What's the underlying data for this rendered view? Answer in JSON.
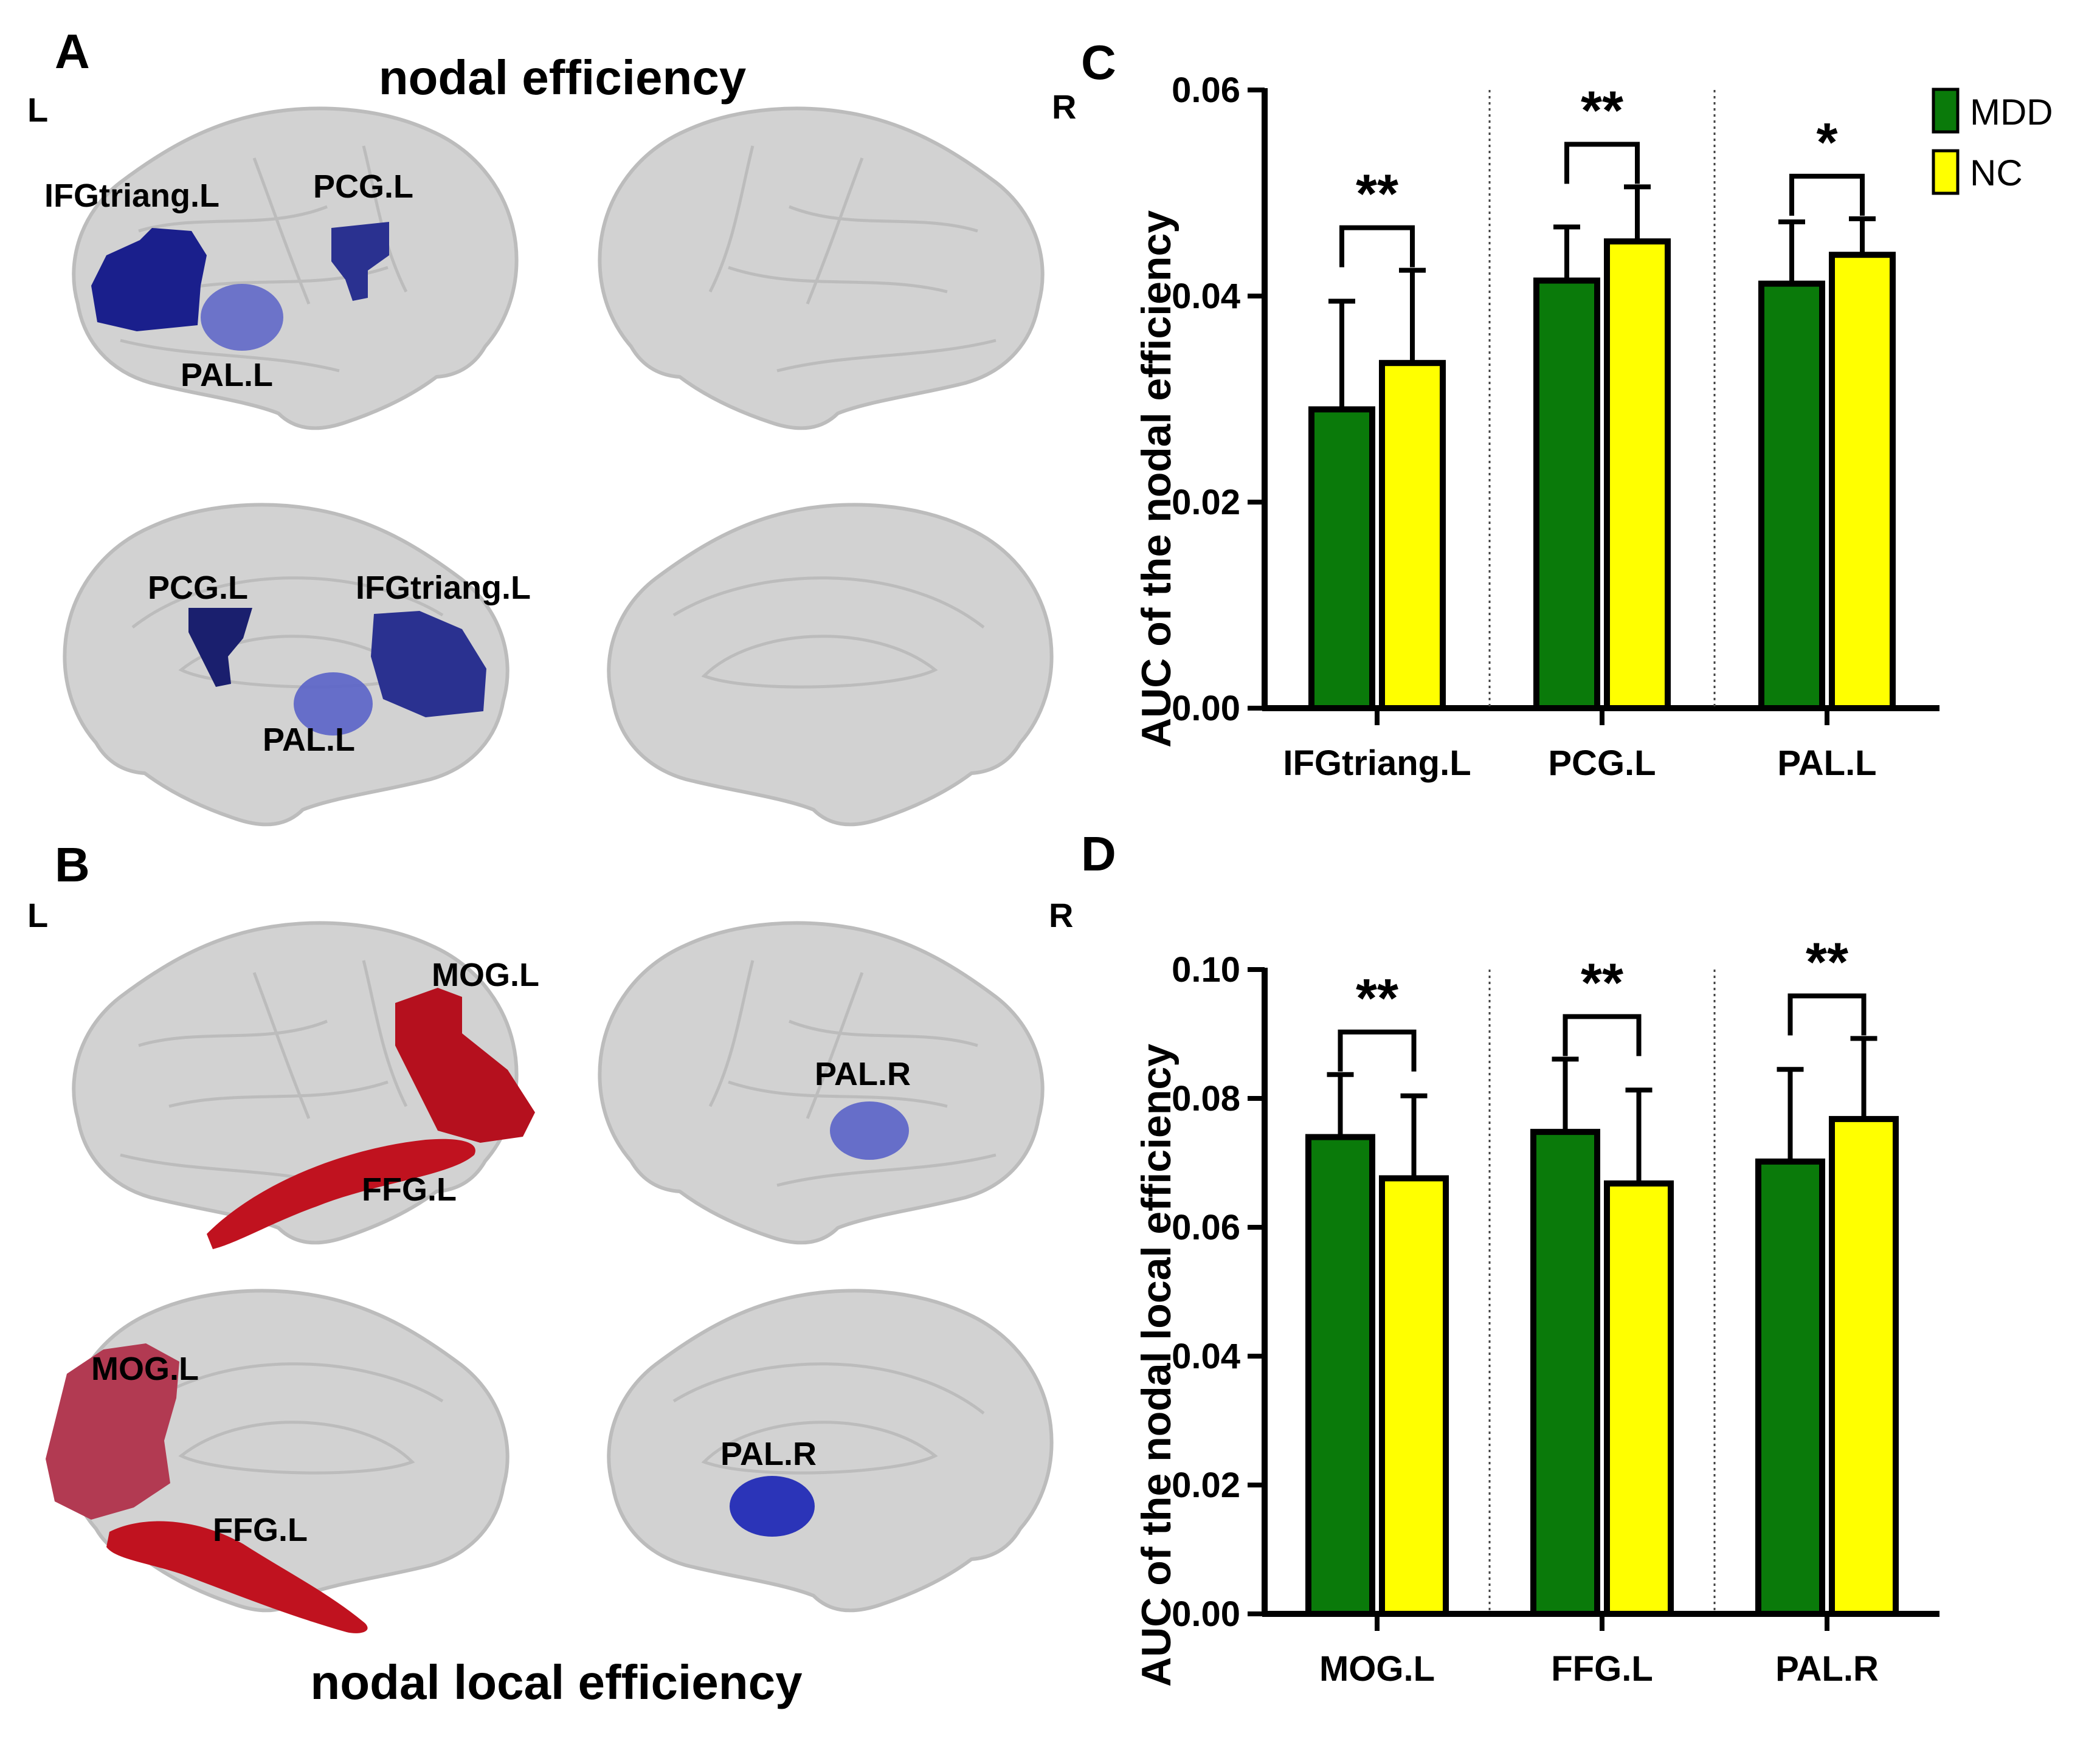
{
  "colors": {
    "mdd": "#0a7a0a",
    "nc": "#ffff00",
    "bar_stroke": "#000000",
    "brain_fill": "#d2d2d2",
    "brain_stroke": "#bcbcbc",
    "blue_region": "#1a1f8c",
    "light_blue_region": "#5a63c8",
    "red_region": "#b5101e"
  },
  "panel_a": {
    "letter": "A",
    "title": "nodal efficiency",
    "left_marker": "L",
    "right_marker": "R",
    "labels": {
      "ifg_lateral": "IFGtriang.L",
      "pcg_lateral": "PCG.L",
      "pal_lateral": "PAL.L",
      "pcg_medial": "PCG.L",
      "ifg_medial": "IFGtriang.L",
      "pal_medial": "PAL.L"
    }
  },
  "panel_b": {
    "letter": "B",
    "title": "nodal local efficiency",
    "left_marker": "L",
    "right_marker": "R",
    "labels": {
      "mog_lateral": "MOG.L",
      "ffg_lateral": "FFG.L",
      "pal_r_lateral": "PAL.R",
      "mog_medial": "MOG.L",
      "ffg_medial": "FFG.L",
      "pal_r_medial": "PAL.R"
    }
  },
  "chart_data": [
    {
      "panel": "C",
      "type": "bar",
      "title": "",
      "ylabel": "AUC of the nodal efficiency",
      "xlabel": "",
      "ylim": [
        0,
        0.06
      ],
      "yticks": [
        "0.00",
        "0.02",
        "0.04",
        "0.06"
      ],
      "categories": [
        "IFGtriang.L",
        "PCG.L",
        "PAL.L"
      ],
      "series": [
        {
          "name": "MDD",
          "values": [
            0.029,
            0.0415,
            0.0412
          ],
          "errors": [
            0.0105,
            0.0052,
            0.006
          ]
        },
        {
          "name": "NC",
          "values": [
            0.0335,
            0.0453,
            0.044
          ],
          "errors": [
            0.009,
            0.0053,
            0.0035
          ]
        }
      ],
      "significance": [
        "**",
        "**",
        "*"
      ],
      "legend": {
        "position": "top-right",
        "entries": [
          "MDD",
          "NC"
        ]
      }
    },
    {
      "panel": "D",
      "type": "bar",
      "title": "",
      "ylabel": "AUC of the nodal local efficiency",
      "xlabel": "",
      "ylim": [
        0,
        0.1
      ],
      "yticks": [
        "0.00",
        "0.02",
        "0.04",
        "0.06",
        "0.08",
        "0.10"
      ],
      "categories": [
        "MOG.L",
        "FFG.L",
        "PAL.R"
      ],
      "series": [
        {
          "name": "MDD",
          "values": [
            0.074,
            0.0748,
            0.0702
          ],
          "errors": [
            0.0097,
            0.0113,
            0.0143
          ]
        },
        {
          "name": "NC",
          "values": [
            0.0676,
            0.0668,
            0.0768
          ],
          "errors": [
            0.0128,
            0.0145,
            0.0125
          ]
        }
      ],
      "significance": [
        "**",
        "**",
        "**"
      ]
    }
  ]
}
